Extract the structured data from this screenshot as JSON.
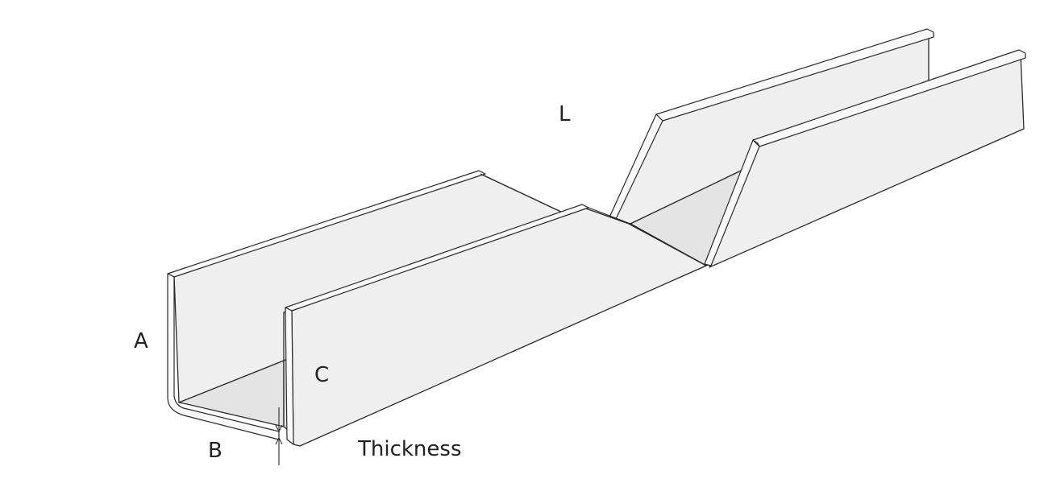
{
  "labels": {
    "a": "A",
    "b": "B",
    "c": "C",
    "l": "L",
    "thickness": "Thickness"
  }
}
